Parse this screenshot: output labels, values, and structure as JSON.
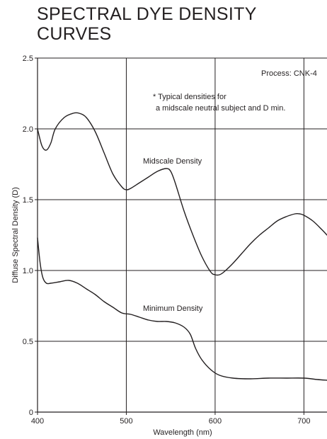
{
  "chart_data": {
    "type": "line",
    "title_lines": [
      "SPECTRAL DYE DENSITY",
      "CURVES"
    ],
    "xlabel": "Wavelength (nm)",
    "ylabel": "Diffuse Spectral Density (D)",
    "xlim": [
      400,
      726
    ],
    "ylim": [
      0,
      2.5
    ],
    "xticks": [
      400,
      500,
      600,
      700
    ],
    "yticks": [
      0,
      0.5,
      1.0,
      1.5,
      2.0,
      2.5
    ],
    "ytick_labels": [
      "0",
      "0.5",
      "1.0",
      "1.5",
      "2.0",
      "2.5"
    ],
    "grid": true,
    "process_label": "Process: CNK-4",
    "note_lines": [
      "* Typical densities for",
      "a midscale neutral subject and D min."
    ],
    "series": [
      {
        "name": "Midscale Density",
        "x": [
          400,
          405,
          410,
          415,
          420,
          430,
          440,
          447,
          455,
          465,
          475,
          485,
          495,
          500,
          505,
          515,
          525,
          535,
          545,
          550,
          555,
          565,
          575,
          585,
          595,
          600,
          605,
          610,
          620,
          630,
          640,
          650,
          660,
          670,
          680,
          690,
          695,
          700,
          710,
          720,
          726
        ],
        "y": [
          2.0,
          1.88,
          1.85,
          1.9,
          2.0,
          2.08,
          2.11,
          2.11,
          2.08,
          1.98,
          1.83,
          1.68,
          1.59,
          1.57,
          1.58,
          1.62,
          1.66,
          1.7,
          1.72,
          1.7,
          1.62,
          1.42,
          1.25,
          1.1,
          0.99,
          0.97,
          0.97,
          0.99,
          1.05,
          1.12,
          1.19,
          1.25,
          1.3,
          1.35,
          1.38,
          1.4,
          1.4,
          1.39,
          1.35,
          1.29,
          1.25
        ]
      },
      {
        "name": "Minimum Density",
        "x": [
          400,
          403,
          406,
          410,
          415,
          425,
          435,
          445,
          455,
          465,
          475,
          485,
          495,
          505,
          515,
          525,
          535,
          545,
          555,
          565,
          572,
          578,
          585,
          595,
          605,
          620,
          640,
          660,
          680,
          700,
          715,
          726
        ],
        "y": [
          1.23,
          1.05,
          0.95,
          0.91,
          0.91,
          0.92,
          0.93,
          0.91,
          0.87,
          0.83,
          0.78,
          0.74,
          0.7,
          0.69,
          0.67,
          0.65,
          0.64,
          0.64,
          0.63,
          0.6,
          0.55,
          0.45,
          0.37,
          0.3,
          0.26,
          0.24,
          0.235,
          0.24,
          0.24,
          0.24,
          0.23,
          0.225
        ]
      }
    ]
  }
}
